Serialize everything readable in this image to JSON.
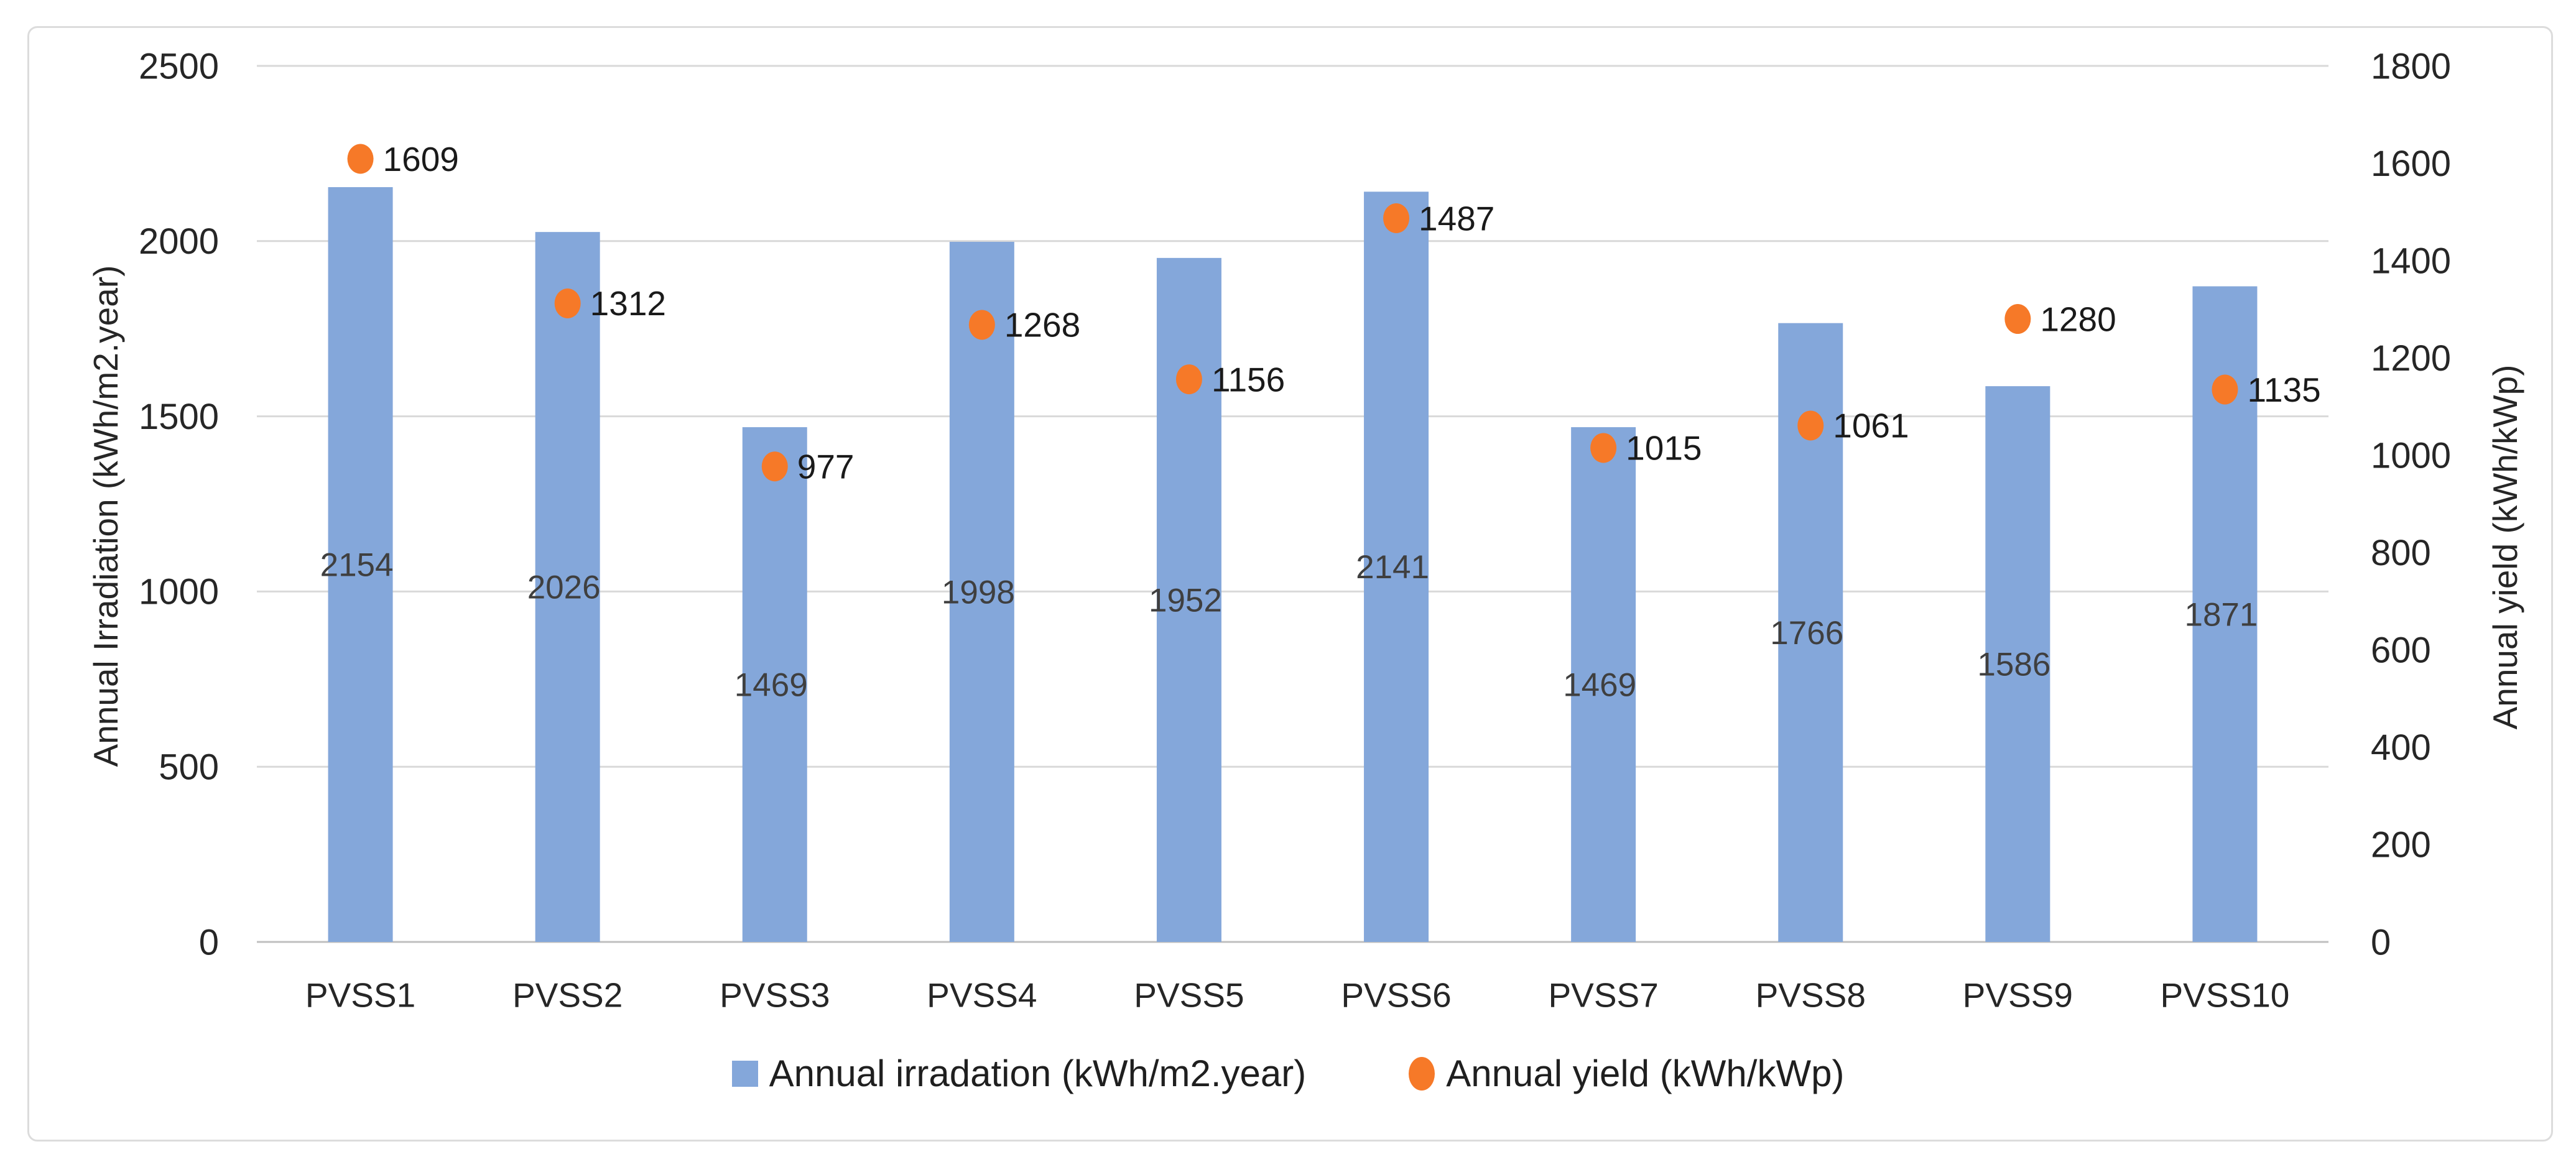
{
  "chart_data": {
    "type": "combo-bar-scatter",
    "categories": [
      "PVSS1",
      "PVSS2",
      "PVSS3",
      "PVSS4",
      "PVSS5",
      "PVSS6",
      "PVSS7",
      "PVSS8",
      "PVSS9",
      "PVSS10"
    ],
    "series": [
      {
        "name": "Annual irradation (kWh/m2.year)",
        "type": "bar",
        "axis": "left",
        "color": "#84a7da",
        "values": [
          2154,
          2026,
          1469,
          1998,
          1952,
          2141,
          1469,
          1766,
          1586,
          1871
        ]
      },
      {
        "name": "Annual yield (kWh/kWp)",
        "type": "scatter",
        "axis": "right",
        "color": "#f67928",
        "values": [
          1609,
          1312,
          977,
          1268,
          1156,
          1487,
          1015,
          1061,
          1280,
          1135
        ]
      }
    ],
    "left_axis": {
      "title": "Annual Irradiation (kWh/m2.year)",
      "min": 0,
      "max": 2500,
      "step": 500,
      "ticks": [
        "0",
        "500",
        "1000",
        "1500",
        "2000",
        "2500"
      ]
    },
    "right_axis": {
      "title": "Annual yield (kWh/kWp)",
      "min": 0,
      "max": 1800,
      "step": 200,
      "ticks": [
        "0",
        "200",
        "400",
        "600",
        "800",
        "1000",
        "1200",
        "1400",
        "1600",
        "1800"
      ]
    },
    "grid": true,
    "legend_position": "bottom",
    "colors": {
      "gridline": "#d9d9d9",
      "baseline": "#bfbfbf",
      "bar_label_text": "#3f3f3f",
      "dot_label_text": "#1a1a1a",
      "tick_text": "#262626"
    }
  },
  "legend": {
    "bar_label": "Annual irradation (kWh/m2.year)",
    "dot_label": "Annual yield (kWh/kWp)"
  },
  "titles": {
    "left_axis": "Annual Irradiation (kWh/m2.year)",
    "right_axis": "Annual yield (kWh/kWp)"
  }
}
